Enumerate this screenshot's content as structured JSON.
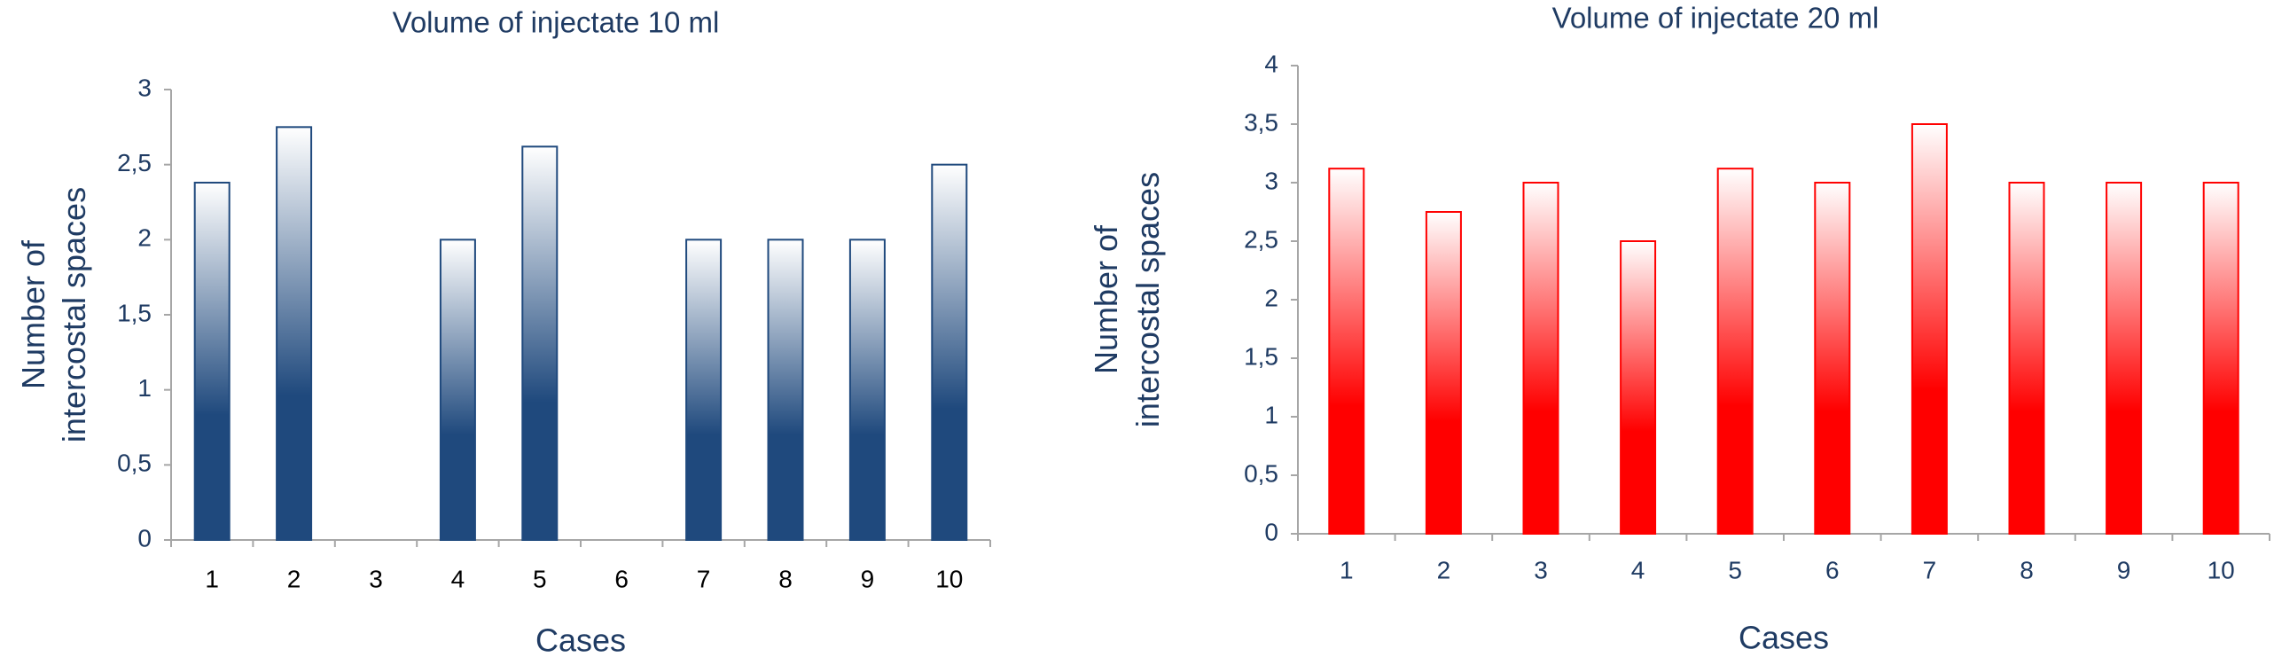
{
  "chart_data": [
    {
      "type": "bar",
      "title": "Volume of injectate 10 ml",
      "x_label": "Cases",
      "y_label": [
        "Number of",
        "intercostal spaces"
      ],
      "categories": [
        "1",
        "2",
        "3",
        "4",
        "5",
        "6",
        "7",
        "8",
        "9",
        "10"
      ],
      "values": [
        2.38,
        2.75,
        0,
        2,
        2.62,
        0,
        2,
        2,
        2,
        2.5
      ],
      "color": "#1f497d",
      "x_label_color": "#000000",
      "ylim": [
        0,
        3
      ],
      "yticks": [
        0,
        {
          "value": 0.5,
          "label": "0,5"
        },
        1,
        {
          "value": 1.5,
          "label": "1,5"
        },
        2,
        {
          "value": 2.5,
          "label": "2,5"
        },
        3
      ]
    },
    {
      "type": "bar",
      "title": "Volume of injectate 20 ml",
      "x_label": "Cases",
      "y_label": [
        "Number of",
        "intercostal spaces"
      ],
      "categories": [
        "1",
        "2",
        "3",
        "4",
        "5",
        "6",
        "7",
        "8",
        "9",
        "10"
      ],
      "values": [
        3.12,
        2.75,
        3,
        2.5,
        3.12,
        3,
        3.5,
        3,
        3,
        3
      ],
      "color": "#ff0000",
      "x_label_color": "#1f3b63",
      "ylim": [
        0,
        4
      ],
      "yticks": [
        0,
        {
          "value": 0.5,
          "label": "0,5"
        },
        1,
        {
          "value": 1.5,
          "label": "1,5"
        },
        2,
        {
          "value": 2.5,
          "label": "2,5"
        },
        3,
        {
          "value": 3.5,
          "label": "3,5"
        },
        4
      ]
    }
  ]
}
